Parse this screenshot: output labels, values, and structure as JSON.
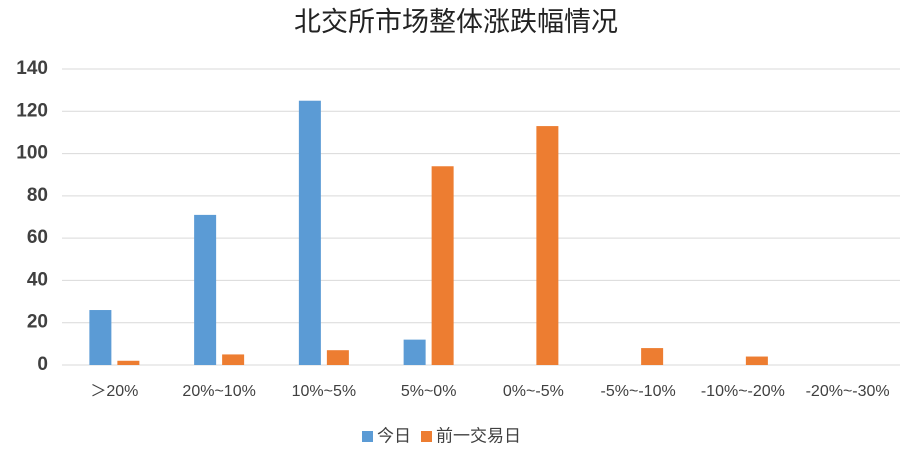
{
  "chart_data": {
    "type": "bar",
    "title": "北交所市场整体涨跌幅情况",
    "categories": [
      "＞20%",
      "20%~10%",
      "10%~5%",
      "5%~0%",
      "0%~-5%",
      "-5%~-10%",
      "-10%~-20%",
      "-20%~-30%"
    ],
    "series": [
      {
        "name": "今日",
        "color": "#5b9bd5",
        "values": [
          26,
          71,
          125,
          12,
          0,
          0,
          0,
          0
        ]
      },
      {
        "name": "前一交易日",
        "color": "#ed7d31",
        "values": [
          2,
          5,
          7,
          94,
          113,
          8,
          4,
          0
        ]
      }
    ],
    "ylim": [
      0,
      140
    ],
    "yticks": [
      0,
      20,
      40,
      60,
      80,
      100,
      120,
      140
    ],
    "grid": true
  }
}
